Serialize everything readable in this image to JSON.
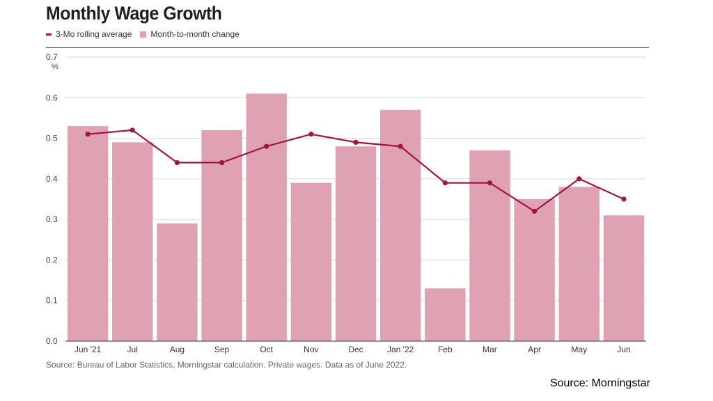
{
  "title": "Monthly Wage Growth",
  "legend": {
    "line_label": "3-Mo rolling average",
    "bar_label": "Month-to-month change"
  },
  "footnote": "Source: Bureau of Labor Statistics, Morningstar calculation. Private wages. Data as of June 2022.",
  "slide_source": "Source: Morningstar",
  "colors": {
    "bar": "#dfa2b3",
    "line": "#a0153e",
    "grid": "#d9d9d9",
    "axis": "#555555"
  },
  "chart_data": {
    "type": "bar",
    "categories": [
      "Jun '21",
      "Jul",
      "Aug",
      "Sep",
      "Oct",
      "Nov",
      "Dec",
      "Jan '22",
      "Feb",
      "Mar",
      "Apr",
      "May",
      "Jun"
    ],
    "series": [
      {
        "name": "Month-to-month change",
        "type": "bar",
        "values": [
          0.53,
          0.49,
          0.29,
          0.52,
          0.61,
          0.39,
          0.48,
          0.57,
          0.13,
          0.47,
          0.35,
          0.38,
          0.31
        ]
      },
      {
        "name": "3-Mo rolling average",
        "type": "line",
        "values": [
          0.51,
          0.52,
          0.44,
          0.44,
          0.48,
          0.51,
          0.49,
          0.48,
          0.39,
          0.39,
          0.32,
          0.4,
          0.35
        ]
      }
    ],
    "ylim": [
      0,
      0.7
    ],
    "yticks": [
      "0.0",
      "0.1",
      "0.2",
      "0.3",
      "0.4",
      "0.5",
      "0.6",
      "0.7"
    ],
    "yunit": "%",
    "grid": true
  }
}
